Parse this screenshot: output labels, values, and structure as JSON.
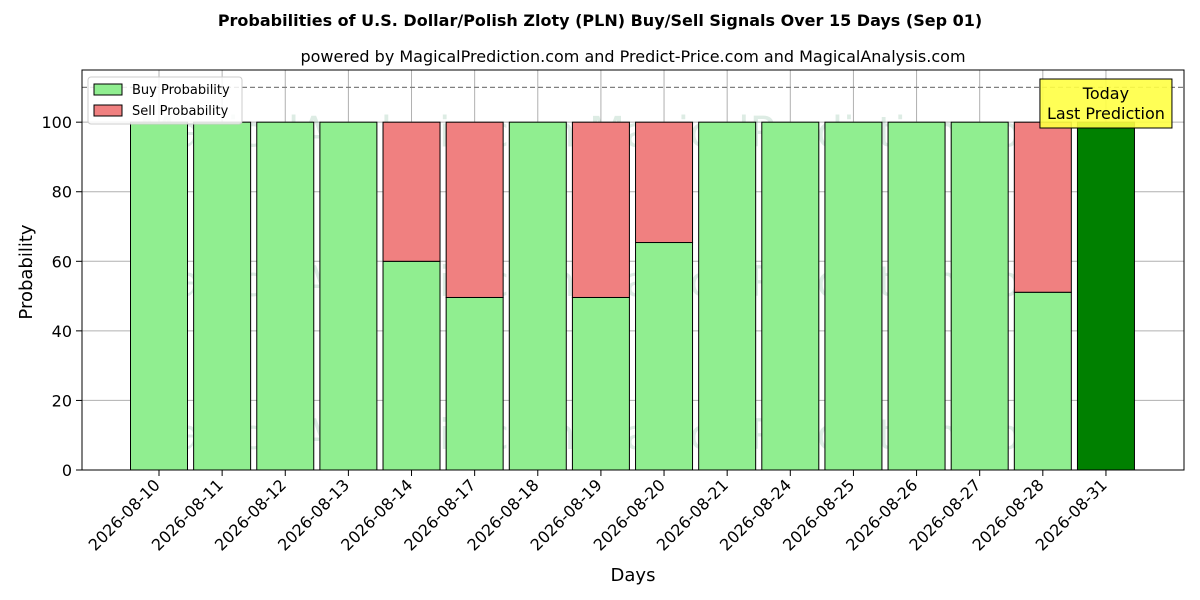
{
  "chart_data": {
    "type": "bar",
    "stacked": true,
    "title": "Probabilities of U.S. Dollar/Polish Zloty (PLN) Buy/Sell Signals Over 15 Days (Sep 01)",
    "subtitle": "powered by MagicalPrediction.com and Predict-Price.com and MagicalAnalysis.com",
    "xlabel": "Days",
    "ylabel": "Probability",
    "ylim": [
      0,
      115
    ],
    "yticks": [
      0,
      20,
      40,
      60,
      80,
      100
    ],
    "grid": true,
    "legend_position": "top-left",
    "reference_line": 110,
    "categories": [
      "2026-08-10",
      "2026-08-11",
      "2026-08-12",
      "2026-08-13",
      "2026-08-14",
      "2026-08-17",
      "2026-08-18",
      "2026-08-19",
      "2026-08-20",
      "2026-08-21",
      "2026-08-24",
      "2026-08-25",
      "2026-08-26",
      "2026-08-27",
      "2026-08-28",
      "2026-08-31"
    ],
    "series": [
      {
        "name": "Buy Probability",
        "color": "#90ee90",
        "values": [
          100,
          100,
          100,
          100,
          60,
          49.6,
          100,
          49.6,
          65.4,
          100,
          100,
          100,
          100,
          100,
          51.1,
          100
        ]
      },
      {
        "name": "Sell Probability",
        "color": "#f08080",
        "values": [
          0,
          0,
          0,
          0,
          40,
          50.4,
          0,
          50.4,
          34.6,
          0,
          0,
          0,
          0,
          0,
          48.9,
          0
        ]
      }
    ],
    "highlight": {
      "index": 15,
      "color": "#008000"
    },
    "annotation": {
      "lines": [
        "Today",
        "Last Prediction"
      ],
      "background": "#ffff44"
    },
    "watermark": "MagicalAnalysis.com    MagicalPrediction.com"
  }
}
